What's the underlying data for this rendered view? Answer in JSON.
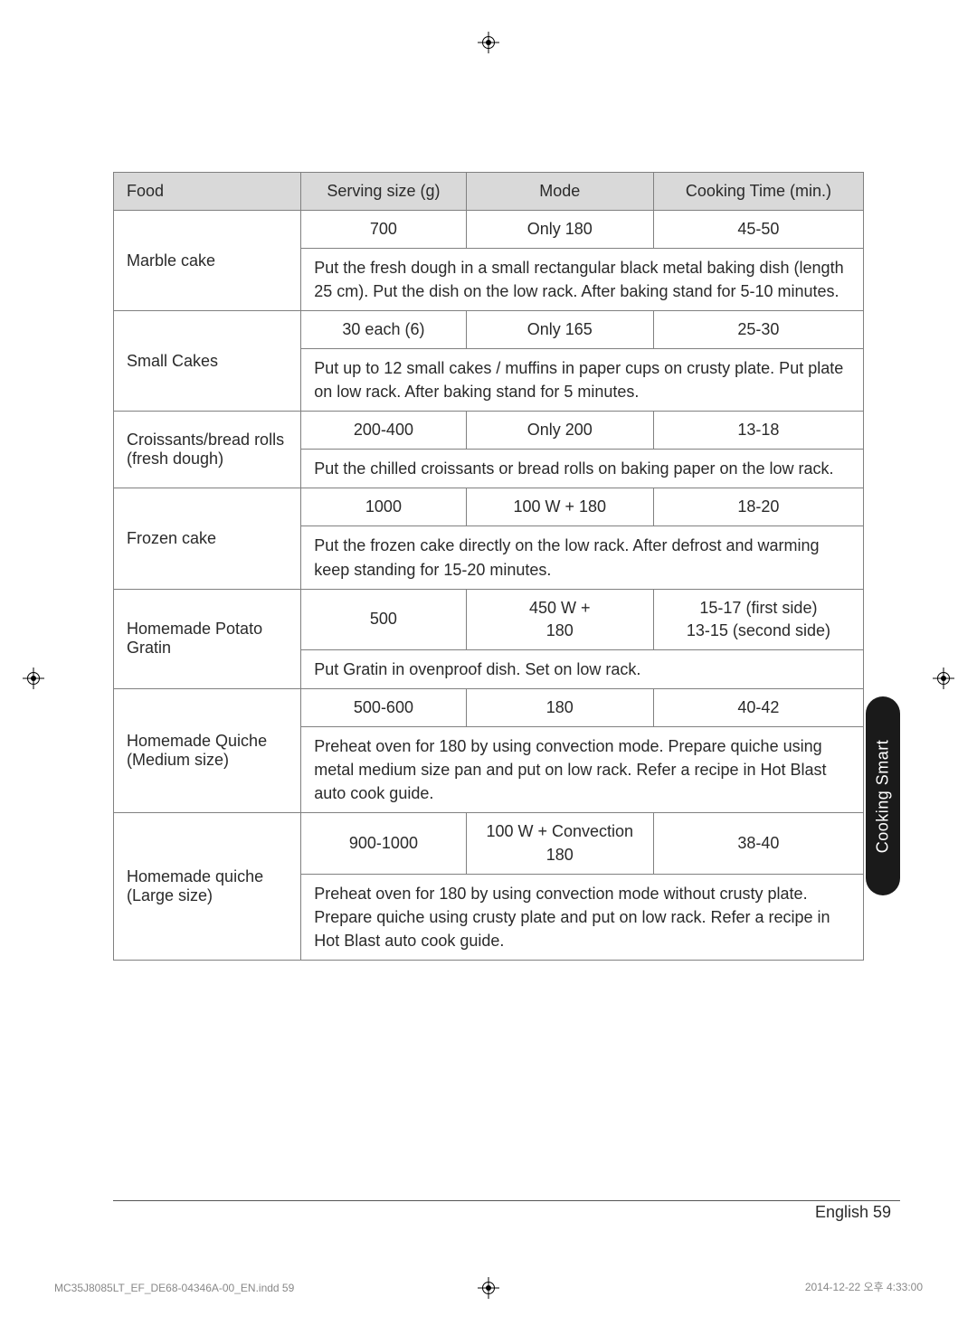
{
  "table": {
    "headers": [
      "Food",
      "Serving size (g)",
      "Mode",
      "Cooking Time (min.)"
    ],
    "rows": [
      {
        "food": "Marble cake",
        "serving": "700",
        "mode": "Only 180",
        "time": "45-50",
        "desc": "Put the fresh dough in a small rectangular black metal baking dish (length 25 cm). Put the dish on the low rack. After baking stand for 5-10 minutes."
      },
      {
        "food": "Small Cakes",
        "serving": "30 each (6)",
        "mode": "Only 165",
        "time": "25-30",
        "desc": "Put up to 12 small cakes / muffins in paper cups on crusty plate. Put plate on low rack. After baking stand for 5 minutes."
      },
      {
        "food": "Croissants/bread rolls (fresh dough)",
        "serving": "200-400",
        "mode": "Only 200",
        "time": "13-18",
        "desc": "Put the chilled croissants or bread rolls on baking paper on the low rack."
      },
      {
        "food": "Frozen cake",
        "serving": "1000",
        "mode": "100 W + 180",
        "time": "18-20",
        "desc": "Put the frozen cake directly on the low rack. After defrost and warming keep standing for 15-20 minutes."
      },
      {
        "food": "Homemade Potato Gratin",
        "serving": "500",
        "mode": "450 W +\n180",
        "time": "15-17 (first side)\n13-15 (second side)",
        "desc": "Put Gratin in ovenproof dish. Set on low rack."
      },
      {
        "food": "Homemade Quiche (Medium size)",
        "serving": "500-600",
        "mode": "180",
        "time": "40-42",
        "desc": "Preheat oven for 180 by using convection mode. Prepare quiche using metal medium size pan and put on low rack. Refer a recipe in Hot Blast auto cook guide."
      },
      {
        "food": "Homemade quiche (Large size)",
        "serving": "900-1000",
        "mode": "100 W + Convection\n180",
        "time": "38-40",
        "desc": "Preheat oven for 180 by using convection mode without crusty plate. Prepare quiche using crusty plate and put on low rack. Refer a recipe in Hot Blast auto cook guide."
      }
    ]
  },
  "sideTab": "Cooking Smart",
  "pageLabel": "English  59",
  "footerLeft": "MC35J8085LT_EF_DE68-04346A-00_EN.indd   59",
  "footerRight": "2014-12-22   오후 4:33:00",
  "colors": {
    "headerBg": "#d9d9d9",
    "border": "#808080",
    "tabBg": "#1a1a1a",
    "text": "#2a2a2a"
  }
}
